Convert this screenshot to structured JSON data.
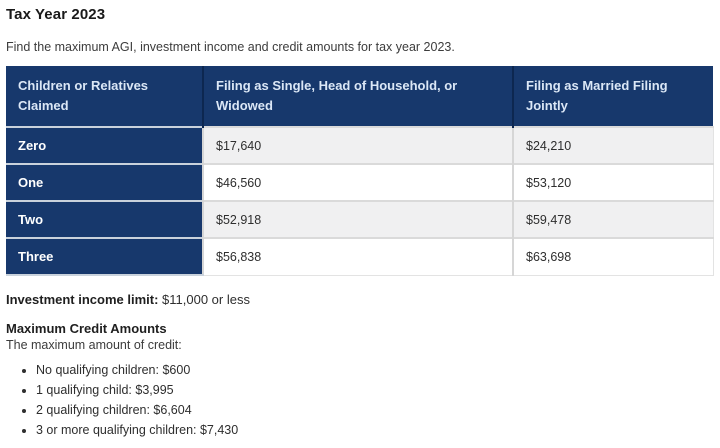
{
  "page": {
    "title": "Tax Year 2023",
    "intro": "Find the maximum AGI, investment income and credit amounts for tax year 2023."
  },
  "table": {
    "columns": [
      "Children or Relatives Claimed",
      "Filing as Single, Head of Household, or Widowed",
      "Filing as Married Filing Jointly"
    ],
    "rows": [
      {
        "label": "Zero",
        "single": "$17,640",
        "married": "$24,210"
      },
      {
        "label": "One",
        "single": "$46,560",
        "married": "$53,120"
      },
      {
        "label": "Two",
        "single": "$52,918",
        "married": "$59,478"
      },
      {
        "label": "Three",
        "single": "$56,838",
        "married": "$63,698"
      }
    ]
  },
  "investment_income": {
    "label": "Investment income limit:",
    "value": " $11,000 or less"
  },
  "credits": {
    "heading": "Maximum Credit Amounts",
    "subheading": "The maximum amount of credit:",
    "items": [
      "No qualifying children: $600",
      "1 qualifying child: $3,995",
      "2 qualifying children: $6,604",
      "3 or more qualifying children: $7,430"
    ]
  },
  "colors": {
    "table_header_bg": "#17386c",
    "row_stripe_bg": "#f0f0f1",
    "header_text": "#dbe7f6"
  }
}
